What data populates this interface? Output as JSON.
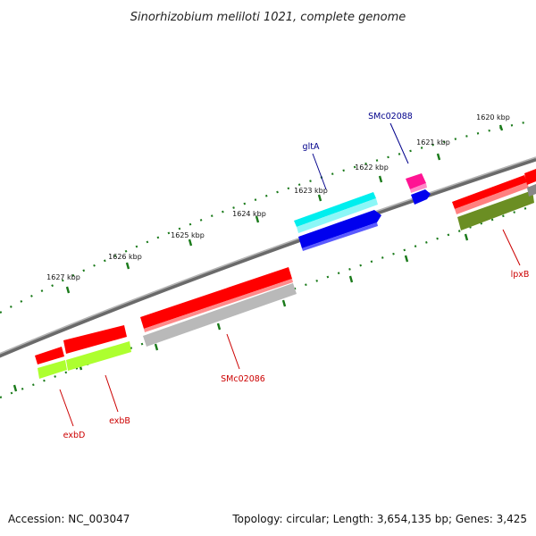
{
  "title": "Sinorhizobium meliloti 1021, complete genome",
  "footer": {
    "accession": "Accession: NC_003047",
    "summary": "Topology: circular; Length: 3,654,135 bp; Genes: 3,425"
  },
  "ticks": [
    {
      "label": "1620 kbp"
    },
    {
      "label": "1621 kbp"
    },
    {
      "label": "1622 kbp"
    },
    {
      "label": "1623 kbp"
    },
    {
      "label": "1624 kbp"
    },
    {
      "label": "1625 kbp"
    },
    {
      "label": "1626 kbp"
    },
    {
      "label": "1627 kbp"
    }
  ],
  "genes": [
    {
      "label": "SMc02088",
      "strand": "forward",
      "color": "#ff1493"
    },
    {
      "label": "gltA",
      "strand": "forward",
      "color": "#00e5ee"
    },
    {
      "label": "lpxB",
      "strand": "reverse",
      "color": "#ff0000"
    },
    {
      "label": "SMc02086",
      "strand": "reverse",
      "color": "#ff0000"
    },
    {
      "label": "exbB",
      "strand": "reverse",
      "color": "#ff0000"
    },
    {
      "label": "exbD",
      "strand": "reverse",
      "color": "#ff0000"
    }
  ],
  "colors": {
    "forward_label": "#00008b",
    "reverse_label": "#cc0000",
    "backbone": "#808080",
    "ticks": "#1a7a1a"
  }
}
